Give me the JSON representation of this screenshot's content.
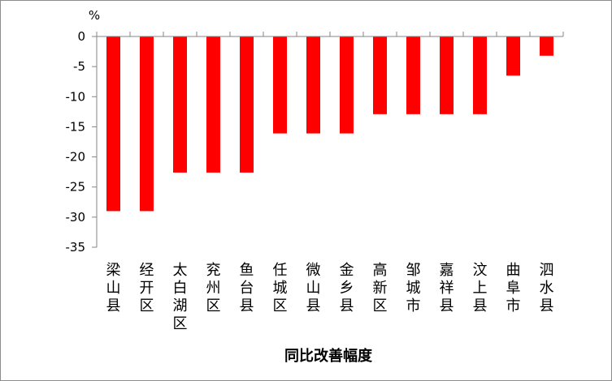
{
  "chart_data": {
    "type": "bar",
    "categories": [
      "梁山县",
      "经开区",
      "太白湖区",
      "兖州区",
      "鱼台县",
      "任城区",
      "微山县",
      "金乡县",
      "高新区",
      "邹城市",
      "嘉祥县",
      "汶上县",
      "曲阜市",
      "泗水县"
    ],
    "values": [
      -29,
      -29,
      -22.6,
      -22.6,
      -22.6,
      -16.1,
      -16.1,
      -16.1,
      -12.9,
      -12.9,
      -12.9,
      -12.9,
      -6.5,
      -3.2
    ],
    "title": "",
    "xlabel": "同比改善幅度",
    "ylabel": "%",
    "ylim": [
      -35,
      0
    ],
    "yticks": [
      0,
      -5,
      -10,
      -15,
      -20,
      -25,
      -30,
      -35
    ],
    "grid": false,
    "legend": "none",
    "bar_color": "#ff0000",
    "axis_color": "#868686"
  }
}
